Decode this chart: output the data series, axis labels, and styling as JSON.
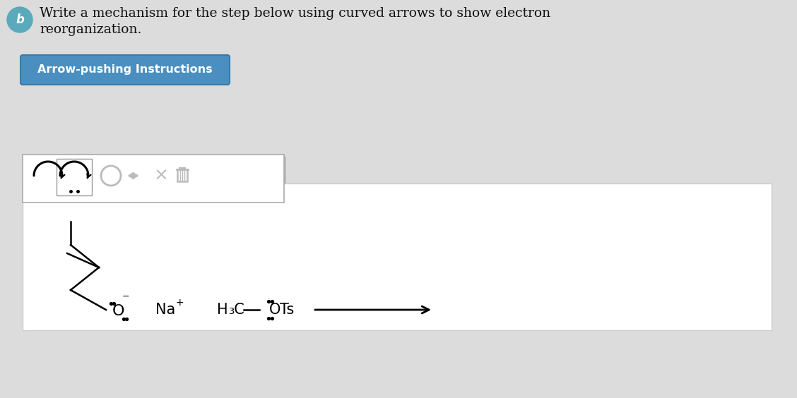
{
  "bg_color": "#dcdcdc",
  "white_box_color": "#ffffff",
  "title_text1": "Write a mechanism for the step below using curved arrows to show electron",
  "title_text2": "reorganization.",
  "btn_text": "Arrow-pushing Instructions",
  "btn_bg": "#4a8fc0",
  "btn_text_color": "#ffffff",
  "circle_b_bg": "#5aaabb",
  "body_text_color": "#111111",
  "figsize": [
    11.28,
    5.64
  ],
  "dpi": 100
}
